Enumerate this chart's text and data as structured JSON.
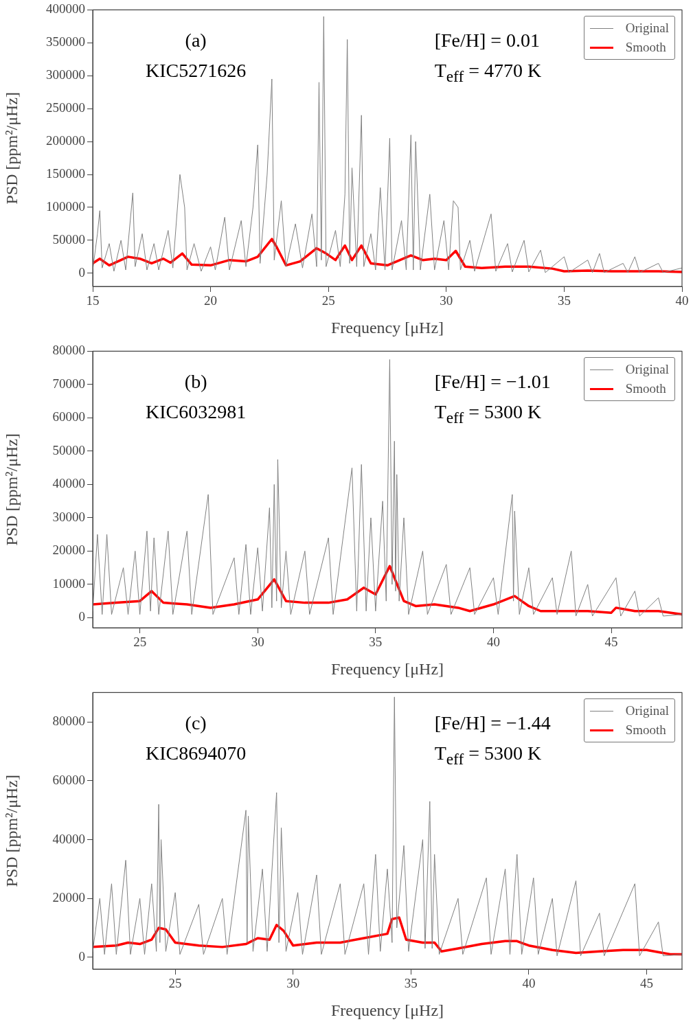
{
  "chart_data": [
    {
      "type": "line",
      "xlabel": "Frequency [μHz]",
      "ylabel": "PSD [ppm²/μHz]",
      "annotations": [
        "(a)",
        "KIC5271626",
        "[Fe/H] = 0.01",
        "T$_{eff}$ = 4770 K"
      ],
      "legend": "top right",
      "grid": false,
      "marker": "none",
      "xlim": [
        15,
        40
      ],
      "xticks": [
        15,
        20,
        25,
        30,
        35,
        40
      ],
      "ylim": [
        -20000,
        400000
      ],
      "yticks": [
        0,
        50000,
        100000,
        150000,
        200000,
        250000,
        300000,
        350000,
        400000
      ],
      "series": [
        {
          "name": "Original",
          "color": "#808080",
          "x": [
            15.0,
            15.2,
            15.3,
            15.4,
            15.7,
            15.9,
            16.2,
            16.4,
            16.7,
            16.8,
            17.1,
            17.3,
            17.6,
            17.8,
            18.2,
            18.4,
            18.7,
            18.9,
            19.0,
            19.3,
            19.6,
            20.0,
            20.2,
            20.6,
            20.8,
            21.3,
            21.5,
            21.8,
            22.0,
            22.1,
            22.4,
            22.6,
            22.7,
            23.0,
            23.2,
            23.6,
            23.9,
            24.3,
            24.5,
            24.6,
            24.7,
            24.8,
            24.9,
            25.3,
            25.5,
            25.7,
            25.8,
            25.9,
            26.0,
            26.2,
            26.4,
            26.5,
            26.8,
            27.0,
            27.2,
            27.4,
            27.6,
            27.7,
            28.1,
            28.3,
            28.5,
            28.6,
            28.7,
            28.9,
            29.3,
            29.5,
            29.9,
            30.1,
            30.3,
            30.5,
            30.6,
            31.0,
            31.2,
            31.9,
            32.1,
            32.6,
            32.8,
            33.3,
            33.5,
            34.0,
            34.2,
            35.0,
            35.2,
            36.0,
            36.2,
            36.5,
            36.7,
            37.5,
            37.7,
            38.0,
            38.2,
            39.0,
            39.2,
            40.0
          ],
          "values": [
            5000,
            60000,
            95000,
            8000,
            45000,
            3000,
            50000,
            5000,
            122000,
            10000,
            60000,
            5000,
            45000,
            5000,
            65000,
            8000,
            150000,
            100000,
            5000,
            45000,
            3000,
            40000,
            5000,
            85000,
            5000,
            80000,
            10000,
            100000,
            195000,
            15000,
            150000,
            295000,
            20000,
            110000,
            10000,
            75000,
            8000,
            90000,
            10000,
            290000,
            20000,
            390000,
            10000,
            65000,
            10000,
            120000,
            355000,
            15000,
            160000,
            10000,
            240000,
            10000,
            60000,
            5000,
            130000,
            5000,
            205000,
            5000,
            80000,
            5000,
            210000,
            5000,
            200000,
            5000,
            120000,
            5000,
            80000,
            5000,
            110000,
            100000,
            5000,
            50000,
            3000,
            90000,
            3000,
            45000,
            2000,
            50000,
            2000,
            35000,
            1000,
            25000,
            1000,
            20000,
            1000,
            30000,
            1000,
            15000,
            1000,
            25000,
            1000,
            15000,
            1000,
            8000
          ]
        },
        {
          "name": "Smooth",
          "color": "#ff0000",
          "x": [
            15.0,
            15.3,
            15.7,
            16.5,
            17.0,
            17.5,
            18.0,
            18.3,
            18.8,
            19.2,
            20.0,
            20.8,
            21.5,
            22.0,
            22.6,
            22.8,
            23.2,
            23.8,
            24.5,
            24.9,
            25.3,
            25.7,
            26.0,
            26.4,
            26.8,
            27.5,
            28.5,
            29.0,
            29.5,
            30.0,
            30.4,
            30.8,
            31.5,
            32.5,
            33.5,
            34.5,
            35.0,
            36.0,
            37.0,
            38.0,
            39.0,
            40.0
          ],
          "values": [
            15000,
            22000,
            12000,
            25000,
            22000,
            15000,
            22000,
            16000,
            30000,
            13000,
            12000,
            20000,
            18000,
            25000,
            52000,
            40000,
            12000,
            18000,
            38000,
            30000,
            20000,
            42000,
            20000,
            42000,
            15000,
            12000,
            27000,
            20000,
            22000,
            20000,
            34000,
            10000,
            8000,
            10000,
            10000,
            7000,
            3000,
            4000,
            3000,
            3000,
            3000,
            2000
          ]
        }
      ]
    },
    {
      "type": "line",
      "xlabel": "Frequency [μHz]",
      "ylabel": "PSD [ppm²/μHz]",
      "annotations": [
        "(b)",
        "KIC6032981",
        "[Fe/H] = −1.01",
        "T$_{eff}$ = 5300 K"
      ],
      "legend": "top right",
      "grid": false,
      "marker": "none",
      "xlim": [
        23,
        48
      ],
      "xticks": [
        25,
        30,
        35,
        40,
        45
      ],
      "ylim": [
        -3000,
        80000
      ],
      "yticks": [
        0,
        10000,
        20000,
        30000,
        40000,
        50000,
        60000,
        70000,
        80000
      ],
      "series": [
        {
          "name": "Original",
          "color": "#808080",
          "x": [
            23.0,
            23.2,
            23.4,
            23.6,
            23.8,
            24.3,
            24.5,
            24.8,
            25.0,
            25.3,
            25.45,
            25.6,
            25.8,
            26.2,
            26.4,
            27.0,
            27.2,
            27.9,
            28.1,
            29.0,
            29.2,
            29.5,
            29.7,
            30.0,
            30.2,
            30.5,
            30.6,
            30.7,
            30.8,
            30.85,
            31.0,
            31.2,
            31.4,
            32.0,
            32.2,
            33.0,
            33.2,
            34.0,
            34.2,
            34.4,
            34.6,
            34.8,
            35.0,
            35.3,
            35.45,
            35.6,
            35.7,
            35.8,
            35.85,
            35.9,
            36.0,
            36.2,
            36.4,
            37.0,
            37.2,
            38.0,
            38.2,
            39.0,
            39.2,
            40.0,
            40.2,
            40.8,
            40.85,
            40.9,
            41.1,
            41.5,
            41.7,
            42.5,
            42.7,
            43.3,
            43.5,
            44.0,
            44.2,
            45.2,
            45.4,
            46.0,
            46.2,
            47.0,
            47.2,
            48.0
          ],
          "values": [
            2000,
            25000,
            1000,
            25000,
            1000,
            15000,
            1000,
            20000,
            1000,
            26000,
            2000,
            24000,
            1000,
            26000,
            1000,
            26000,
            1000,
            37000,
            1000,
            18000,
            1000,
            22000,
            1000,
            21000,
            2000,
            33000,
            3000,
            40000,
            5000,
            47500,
            3000,
            20000,
            1000,
            20000,
            1000,
            24000,
            1000,
            45000,
            2000,
            46000,
            2000,
            30000,
            2000,
            35000,
            5000,
            77500,
            10000,
            53000,
            8000,
            43000,
            5000,
            30000,
            1000,
            20000,
            1000,
            16000,
            1000,
            15000,
            1000,
            12000,
            1000,
            37000,
            5000,
            32000,
            1000,
            15000,
            1000,
            12000,
            1000,
            20000,
            500,
            10000,
            500,
            12000,
            500,
            8000,
            500,
            6000,
            500,
            1000
          ]
        },
        {
          "name": "Smooth",
          "color": "#ff0000",
          "x": [
            23.0,
            24.0,
            25.0,
            25.5,
            26.0,
            27.0,
            28.0,
            29.0,
            30.0,
            30.7,
            31.2,
            32.0,
            33.0,
            33.8,
            34.5,
            35.0,
            35.6,
            36.2,
            36.7,
            37.5,
            38.5,
            39.0,
            40.0,
            40.9,
            41.5,
            42.0,
            43.0,
            44.0,
            45.0,
            45.2,
            46.0,
            47.0,
            48.0
          ],
          "values": [
            4000,
            4500,
            5000,
            8000,
            4500,
            4000,
            3000,
            4000,
            5500,
            11500,
            5000,
            4500,
            4500,
            5500,
            9000,
            7000,
            15500,
            5000,
            3500,
            4000,
            3000,
            2000,
            4000,
            6500,
            3500,
            2000,
            2000,
            2000,
            1500,
            3000,
            2000,
            2000,
            1000
          ]
        }
      ]
    },
    {
      "type": "line",
      "xlabel": "Frequency [μHz]",
      "ylabel": "PSD [ppm²/μHz]",
      "annotations": [
        "(c)",
        "KIC8694070",
        "[Fe/H] = −1.44",
        "T$_{eff}$ = 5300 K"
      ],
      "legend": "top right",
      "grid": false,
      "marker": "none",
      "xlim": [
        21.5,
        46.5
      ],
      "xticks": [
        25,
        30,
        35,
        40,
        45
      ],
      "ylim": [
        -4000,
        90000
      ],
      "yticks": [
        0,
        20000,
        40000,
        60000,
        80000
      ],
      "series": [
        {
          "name": "Original",
          "color": "#808080",
          "x": [
            21.5,
            21.8,
            22.0,
            22.3,
            22.5,
            22.9,
            23.1,
            23.5,
            23.7,
            24.0,
            24.2,
            24.3,
            24.35,
            24.4,
            24.6,
            25.0,
            25.2,
            26.0,
            26.2,
            27.0,
            27.2,
            28.0,
            28.05,
            28.1,
            28.3,
            28.7,
            28.9,
            29.3,
            29.4,
            29.5,
            29.7,
            30.2,
            30.4,
            31.0,
            31.2,
            32.0,
            32.2,
            33.0,
            33.2,
            33.5,
            33.7,
            34.0,
            34.2,
            34.3,
            34.4,
            34.7,
            34.9,
            35.5,
            35.6,
            35.8,
            35.9,
            36.0,
            36.2,
            37.0,
            37.2,
            38.2,
            38.4,
            39.0,
            39.2,
            39.5,
            39.7,
            40.2,
            40.4,
            41.0,
            41.2,
            42.0,
            42.2,
            43.0,
            43.2,
            44.5,
            44.7,
            45.5,
            45.7,
            46.5
          ],
          "values": [
            2000,
            20000,
            1000,
            25000,
            1000,
            33000,
            1000,
            20000,
            1000,
            25000,
            2000,
            52000,
            5000,
            40000,
            2000,
            22000,
            1000,
            18000,
            1000,
            20000,
            1000,
            50000,
            5000,
            48000,
            2000,
            30000,
            2000,
            56000,
            5000,
            44000,
            2000,
            22000,
            1000,
            28000,
            1000,
            25000,
            1000,
            25000,
            1000,
            35000,
            2000,
            30000,
            5000,
            88500,
            10000,
            38000,
            2000,
            40000,
            3000,
            53000,
            3000,
            35000,
            1000,
            20000,
            1000,
            27000,
            1000,
            30000,
            1000,
            35000,
            1000,
            27000,
            1000,
            20000,
            500,
            26000,
            500,
            15000,
            500,
            25000,
            500,
            12000,
            500,
            1000
          ]
        },
        {
          "name": "Smooth",
          "color": "#ff0000",
          "x": [
            21.5,
            22.5,
            23.0,
            23.5,
            24.0,
            24.3,
            24.6,
            25.0,
            26.0,
            27.0,
            28.0,
            28.5,
            29.0,
            29.3,
            29.6,
            30.0,
            31.0,
            32.0,
            33.0,
            34.0,
            34.2,
            34.5,
            34.8,
            35.5,
            36.0,
            36.3,
            37.0,
            38.0,
            39.0,
            39.5,
            40.0,
            41.0,
            42.0,
            43.0,
            44.0,
            45.0,
            46.0,
            46.5
          ],
          "values": [
            3500,
            4000,
            5000,
            4500,
            6000,
            10000,
            9500,
            5000,
            4000,
            3500,
            4500,
            6500,
            6000,
            11000,
            9000,
            4000,
            5000,
            5000,
            6500,
            8000,
            13000,
            13500,
            6000,
            5000,
            5000,
            2000,
            3000,
            4500,
            5500,
            5500,
            4000,
            2500,
            1500,
            2000,
            2500,
            2500,
            1000,
            1000
          ]
        }
      ]
    }
  ]
}
